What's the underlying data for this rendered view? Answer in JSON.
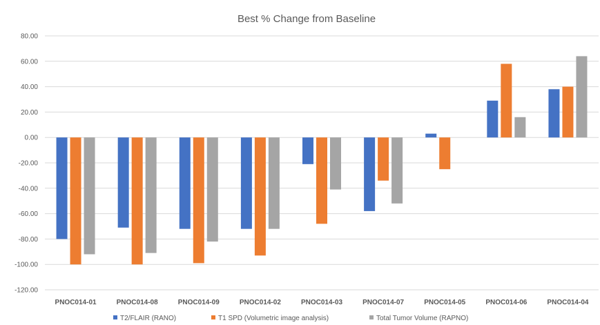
{
  "chart_data": {
    "type": "bar",
    "title": "Best % Change from Baseline",
    "xlabel": "",
    "ylabel": "",
    "ylim": [
      -120,
      80
    ],
    "ytick_step": 20,
    "ytick_labels": [
      "80.00",
      "60.00",
      "40.00",
      "20.00",
      "0.00",
      "-20.00",
      "-40.00",
      "-60.00",
      "-80.00",
      "-100.00",
      "-120.00"
    ],
    "grid": true,
    "legend_position": "bottom",
    "categories": [
      "PNOC014-01",
      "PNOC014-08",
      "PNOC014-09",
      "PNOC014-02",
      "PNOC014-03",
      "PNOC014-07",
      "PNOC014-05",
      "PNOC014-06",
      "PNOC014-04"
    ],
    "series": [
      {
        "name": "T2/FLAIR (RANO)",
        "color": "#4472c4",
        "values": [
          -80,
          -71,
          -72,
          -72,
          -21,
          -58,
          3,
          29,
          38
        ]
      },
      {
        "name": "T1 SPD (Volumetric image analysis)",
        "color": "#ed7d31",
        "values": [
          -100,
          -100,
          -99,
          -93,
          -68,
          -34,
          -25,
          58,
          40
        ]
      },
      {
        "name": "Total Tumor Volume (RAPNO)",
        "color": "#a5a5a5",
        "values": [
          -92,
          -91,
          -82,
          -72,
          -41,
          -52,
          0,
          16,
          64
        ]
      }
    ]
  }
}
